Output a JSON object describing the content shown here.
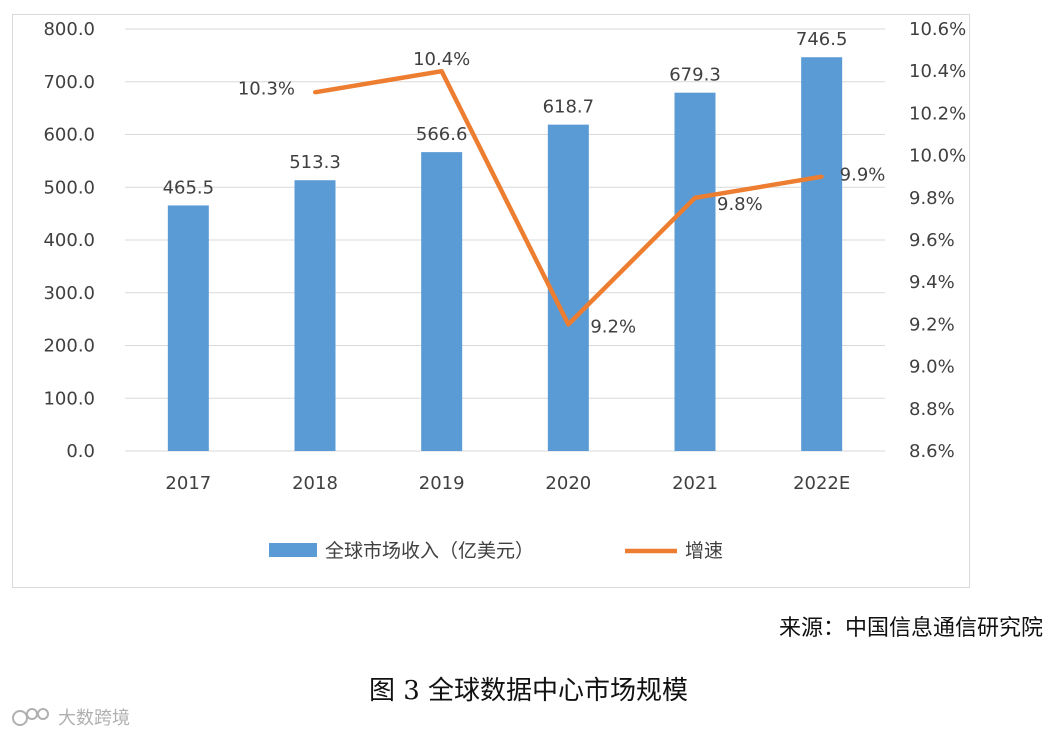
{
  "chart_data": {
    "type": "bar+line",
    "categories": [
      "2017",
      "2018",
      "2019",
      "2020",
      "2021",
      "2022E"
    ],
    "series": [
      {
        "name": "全球市场收入（亿美元）",
        "type": "bar",
        "axis": "left",
        "values": [
          465.5,
          513.3,
          566.6,
          618.7,
          679.3,
          746.5
        ],
        "labels": [
          "465.5",
          "513.3",
          "566.6",
          "618.7",
          "679.3",
          "746.5"
        ]
      },
      {
        "name": "增速",
        "type": "line",
        "axis": "right",
        "values": [
          null,
          10.3,
          10.4,
          9.2,
          9.8,
          9.9
        ],
        "labels": [
          "",
          "10.3%",
          "10.4%",
          "9.2%",
          "9.8%",
          "9.9%"
        ]
      }
    ],
    "y_left": {
      "min": 0,
      "max": 800,
      "step": 100,
      "ticks": [
        "0.0",
        "100.0",
        "200.0",
        "300.0",
        "400.0",
        "500.0",
        "600.0",
        "700.0",
        "800.0"
      ]
    },
    "y_right": {
      "min": 8.6,
      "max": 10.6,
      "step": 0.2,
      "ticks": [
        "8.6%",
        "8.8%",
        "9.0%",
        "9.2%",
        "9.4%",
        "9.6%",
        "9.8%",
        "10.0%",
        "10.2%",
        "10.4%",
        "10.6%"
      ]
    },
    "grid": true,
    "legend_position": "bottom",
    "colors": {
      "bar": "#5b9bd5",
      "line": "#ed7d31",
      "grid": "#d9d9d9",
      "text": "#404040"
    }
  },
  "source_text": "来源：中国信息通信研究院",
  "caption": "图 3 全球数据中心市场规模",
  "watermark": "大数跨境"
}
